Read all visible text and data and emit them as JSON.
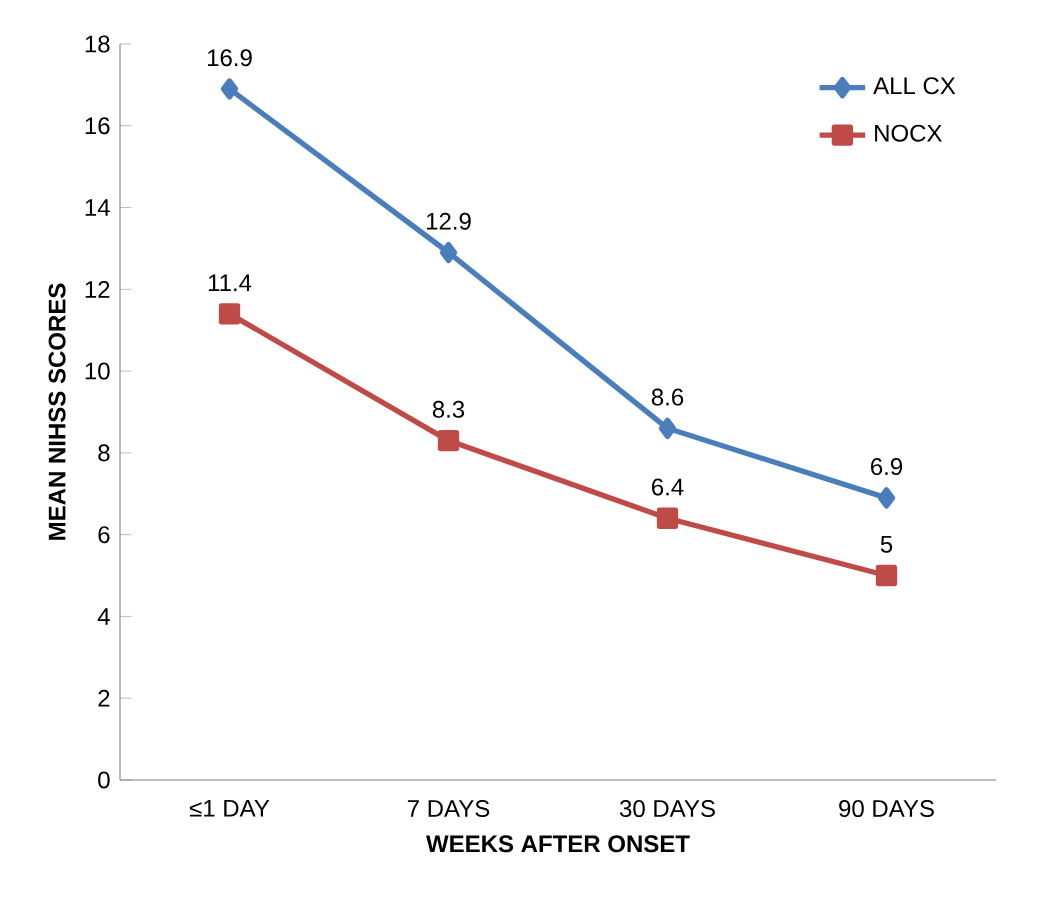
{
  "chart_data": {
    "type": "line",
    "xlabel": "WEEKS AFTER ONSET",
    "ylabel": "MEAN NIHSS SCORES",
    "categories": [
      "≤1 DAY",
      "7 DAYS",
      "30 DAYS",
      "90 DAYS"
    ],
    "series": [
      {
        "name": "ALL CX",
        "color": "#4a7ebb",
        "marker": "diamond",
        "values": [
          16.9,
          12.9,
          8.6,
          6.9
        ]
      },
      {
        "name": "NOCX",
        "color": "#be4b48",
        "marker": "square",
        "values": [
          11.4,
          8.3,
          6.4,
          5
        ]
      }
    ],
    "ylim": [
      0,
      18
    ],
    "yticks": [
      0,
      2,
      4,
      6,
      8,
      10,
      12,
      14,
      16,
      18
    ],
    "grid": false,
    "legend": "top right",
    "data_labels": true
  }
}
